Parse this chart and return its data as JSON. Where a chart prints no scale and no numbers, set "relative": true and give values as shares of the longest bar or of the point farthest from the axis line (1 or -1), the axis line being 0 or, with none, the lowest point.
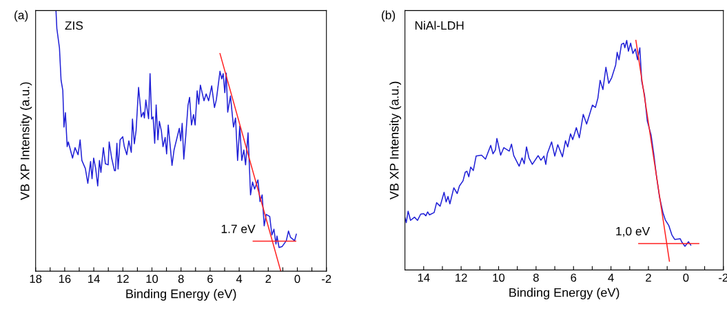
{
  "chart_data": [
    {
      "type": "line",
      "relative": true,
      "xlabel": "Binding Energy (eV)",
      "ylabel": "VB XP Intensity (a.u.)",
      "tick_labels": "x",
      "grid": false,
      "xlim": [
        18,
        -2
      ],
      "xticks": [
        18,
        {
          "value": 17,
          "label": null
        },
        16,
        {
          "value": 15,
          "label": null
        },
        14,
        {
          "value": 13,
          "label": null
        },
        12,
        {
          "value": 11,
          "label": null
        },
        10,
        {
          "value": 9,
          "label": null
        },
        8,
        {
          "value": 7,
          "label": null
        },
        6,
        {
          "value": 5,
          "label": null
        },
        4,
        {
          "value": 3,
          "label": null
        },
        2,
        {
          "value": 1,
          "label": null
        },
        0,
        {
          "value": -1,
          "label": null
        },
        -2
      ],
      "annotations": [
        "(a)",
        "ZIS",
        {
          "text": "1.7 eV",
          "x": 1.7,
          "y": 0.115
        }
      ],
      "series": [
        {
          "color": "#1f1fd6",
          "x": [
            16.6,
            16.54,
            16.36,
            16.25,
            16.13,
            16.05,
            15.95,
            15.83,
            15.75,
            15.46,
            15.29,
            15.08,
            14.94,
            14.82,
            14.58,
            14.41,
            14.22,
            14.12,
            14.01,
            13.87,
            13.73,
            13.61,
            13.51,
            13.34,
            13.2,
            13.01,
            12.94,
            12.77,
            12.58,
            12.51,
            12.41,
            12.33,
            12.19,
            12.01,
            11.9,
            11.73,
            11.59,
            11.42,
            11.34,
            11.21,
            11.09,
            10.92,
            10.73,
            10.59,
            10.52,
            10.42,
            10.23,
            10.13,
            10.02,
            9.92,
            9.81,
            9.71,
            9.59,
            9.49,
            9.35,
            9.24,
            9.09,
            8.99,
            8.88,
            8.62,
            8.48,
            8.31,
            8.12,
            8.02,
            7.92,
            7.81,
            7.67,
            7.52,
            7.41,
            7.28,
            7.14,
            7.03,
            6.89,
            6.78,
            6.67,
            6.42,
            6.27,
            6.1,
            5.89,
            5.7,
            5.57,
            5.32,
            5.2,
            5.1,
            4.99,
            4.89,
            4.79,
            4.6,
            4.39,
            4.25,
            4.11,
            3.96,
            3.82,
            3.68,
            3.56,
            3.39,
            3.22,
            3.08,
            2.94,
            2.71,
            2.57,
            2.42,
            2.28,
            2.14,
            1.9,
            1.75,
            1.61,
            1.47,
            1.4,
            1.26,
            1.04,
            0.76,
            0.61,
            0.47,
            0.19,
            0.07
          ],
          "values": [
            1.0,
            0.931,
            0.856,
            0.733,
            0.694,
            0.553,
            0.608,
            0.478,
            0.496,
            0.434,
            0.474,
            0.447,
            0.504,
            0.425,
            0.394,
            0.337,
            0.421,
            0.355,
            0.434,
            0.394,
            0.327,
            0.425,
            0.379,
            0.474,
            0.412,
            0.408,
            0.496,
            0.434,
            0.386,
            0.386,
            0.491,
            0.392,
            0.504,
            0.516,
            0.478,
            0.447,
            0.5,
            0.456,
            0.584,
            0.489,
            0.54,
            0.705,
            0.592,
            0.61,
            0.588,
            0.657,
            0.585,
            0.758,
            0.584,
            0.592,
            0.491,
            0.638,
            0.504,
            0.575,
            0.538,
            0.478,
            0.513,
            0.45,
            0.561,
            0.406,
            0.465,
            0.504,
            0.548,
            0.5,
            0.567,
            0.43,
            0.522,
            0.636,
            0.667,
            0.561,
            0.601,
            0.561,
            0.692,
            0.641,
            0.714,
            0.654,
            0.68,
            0.654,
            0.711,
            0.628,
            0.658,
            0.767,
            0.738,
            0.758,
            0.685,
            0.76,
            0.61,
            0.672,
            0.553,
            0.588,
            0.425,
            0.557,
            0.425,
            0.465,
            0.408,
            0.531,
            0.293,
            0.342,
            0.315,
            0.35,
            0.267,
            0.293,
            0.174,
            0.218,
            0.21,
            0.139,
            0.161,
            0.104,
            0.135,
            0.091,
            0.095,
            0.117,
            0.154,
            0.13,
            0.117,
            0.142
          ]
        },
        {
          "color": "#ff2020",
          "x": [
            5.32,
            1.14
          ],
          "values": [
            0.835,
            0.0
          ]
        },
        {
          "color": "#ff2020",
          "x": [
            3.04,
            0.11
          ],
          "values": [
            0.115,
            0.115
          ]
        }
      ]
    },
    {
      "type": "line",
      "relative": true,
      "xlabel": "Binding Energy (eV)",
      "ylabel": "VB XP Intensity (a.u.)",
      "tick_labels": "x",
      "grid": false,
      "xlim": [
        15,
        -2
      ],
      "xticks": [
        14,
        {
          "value": 13,
          "label": null
        },
        12,
        {
          "value": 11,
          "label": null
        },
        10,
        {
          "value": 9,
          "label": null
        },
        8,
        {
          "value": 7,
          "label": null
        },
        6,
        {
          "value": 5,
          "label": null
        },
        4,
        {
          "value": 3,
          "label": null
        },
        2,
        {
          "value": 1,
          "label": null
        },
        0,
        {
          "value": -1,
          "label": null
        },
        -2
      ],
      "annotations": [
        "(b)",
        "NiAl-LDH",
        {
          "text": "1,0 eV",
          "x": 1.0,
          "y": 0.115
        }
      ],
      "series": [
        {
          "color": "#1f1fd6",
          "x": [
            15.0,
            14.93,
            14.83,
            14.7,
            14.49,
            14.33,
            14.16,
            14.0,
            13.88,
            13.79,
            13.69,
            13.44,
            13.31,
            13.12,
            12.91,
            12.8,
            12.7,
            12.6,
            12.39,
            12.21,
            12.09,
            11.9,
            11.78,
            11.69,
            11.59,
            11.49,
            11.35,
            11.2,
            10.91,
            10.7,
            10.42,
            10.3,
            10.17,
            10.09,
            9.89,
            9.72,
            9.43,
            9.31,
            9.19,
            8.9,
            8.75,
            8.63,
            8.51,
            8.38,
            8.2,
            7.89,
            7.74,
            7.58,
            7.48,
            7.4,
            7.17,
            7.0,
            6.84,
            6.59,
            6.43,
            6.31,
            6.16,
            6.04,
            5.85,
            5.69,
            5.48,
            5.3,
            4.99,
            4.83,
            4.7,
            4.58,
            4.43,
            4.27,
            4.12,
            3.96,
            3.75,
            3.67,
            3.57,
            3.44,
            3.32,
            3.26,
            3.16,
            3.07,
            2.95,
            2.83,
            2.7,
            2.58,
            2.46,
            2.36,
            2.21,
            2.06,
            1.86,
            1.72,
            1.57,
            1.41,
            1.22,
            1.1,
            0.91,
            0.75,
            0.6,
            0.3,
            0.23,
            0.05,
            -0.14,
            -0.26
          ],
          "values": [
            0.228,
            0.206,
            0.256,
            0.216,
            0.23,
            0.216,
            0.243,
            0.245,
            0.236,
            0.253,
            0.24,
            0.25,
            0.293,
            0.278,
            0.338,
            0.296,
            0.32,
            0.288,
            0.358,
            0.333,
            0.366,
            0.388,
            0.426,
            0.43,
            0.406,
            0.448,
            0.433,
            0.496,
            0.5,
            0.483,
            0.543,
            0.506,
            0.523,
            0.573,
            0.5,
            0.533,
            0.518,
            0.548,
            0.498,
            0.452,
            0.488,
            0.463,
            0.536,
            0.488,
            0.46,
            0.498,
            0.478,
            0.496,
            0.46,
            0.506,
            0.558,
            0.496,
            0.546,
            0.493,
            0.563,
            0.536,
            0.593,
            0.568,
            0.62,
            0.576,
            0.678,
            0.636,
            0.718,
            0.708,
            0.748,
            0.826,
            0.786,
            0.883,
            0.813,
            0.838,
            0.893,
            0.948,
            0.916,
            0.983,
            0.988,
            0.968,
            1.0,
            0.953,
            0.988,
            0.943,
            0.963,
            0.916,
            0.968,
            0.823,
            0.763,
            0.648,
            0.588,
            0.508,
            0.408,
            0.318,
            0.248,
            0.218,
            0.193,
            0.153,
            0.133,
            0.136,
            0.123,
            0.103,
            0.123,
            0.108
          ]
        },
        {
          "color": "#ff2020",
          "x": [
            2.67,
            0.88
          ],
          "values": [
            1.0,
            0.038
          ]
        },
        {
          "color": "#ff2020",
          "x": [
            2.52,
            -0.69
          ],
          "values": [
            0.115,
            0.115
          ]
        }
      ]
    }
  ]
}
